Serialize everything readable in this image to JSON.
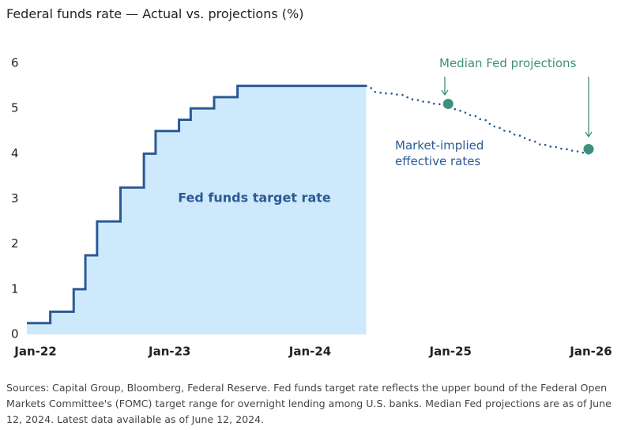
{
  "chart_data": {
    "type": "line",
    "title": "Federal funds rate — Actual vs. projections (%)",
    "notes": "Sources: Capital Group, Bloomberg, Federal Reserve. Fed funds target rate reflects the upper bound of the Federal Open Markets Committee's (FOMC) target range for overnight lending among U.S. banks. Median Fed projections are as of June 12, 2024. Latest data available as of June 12, 2024.",
    "ylim": [
      0,
      6
    ],
    "yticks": [
      0,
      1,
      2,
      3,
      4,
      5,
      6
    ],
    "xlim": [
      "2022-01",
      "2026-01"
    ],
    "xticks": [
      {
        "value": "2022-01",
        "label": "Jan-22"
      },
      {
        "value": "2023-01",
        "label": "Jan-23"
      },
      {
        "value": "2024-01",
        "label": "Jan-24"
      },
      {
        "value": "2025-01",
        "label": "Jan-25"
      },
      {
        "value": "2026-01",
        "label": "Jan-26"
      }
    ],
    "series": [
      {
        "name": "Fed funds target rate",
        "color": "#2b5a94",
        "fill": "#cde9fb",
        "style": "step-area",
        "x": [
          "2022-01",
          "2022-03",
          "2022-05",
          "2022-06",
          "2022-07",
          "2022-09",
          "2022-11",
          "2022-12",
          "2023-02",
          "2023-03",
          "2023-05",
          "2023-07",
          "2024-06"
        ],
        "values": [
          0.25,
          0.5,
          1.0,
          1.75,
          2.5,
          3.25,
          4.0,
          4.5,
          4.75,
          5.0,
          5.25,
          5.5,
          5.5
        ]
      },
      {
        "name": "Market-implied effective rates",
        "color": "#2b5a94",
        "style": "dotted",
        "x": [
          "2024-06",
          "2024-07",
          "2024-08",
          "2024-09",
          "2024-10",
          "2024-11",
          "2024-12",
          "2025-01",
          "2025-02",
          "2025-03",
          "2025-04",
          "2025-05",
          "2025-06",
          "2025-07",
          "2025-08",
          "2025-09",
          "2025-10",
          "2025-11",
          "2025-12",
          "2026-01"
        ],
        "values": [
          5.5,
          5.35,
          5.33,
          5.3,
          5.2,
          5.15,
          5.1,
          5.05,
          4.95,
          4.85,
          4.75,
          4.6,
          4.5,
          4.4,
          4.3,
          4.2,
          4.15,
          4.1,
          4.05,
          4.0
        ]
      },
      {
        "name": "Median Fed projections",
        "color": "#3e8f7b",
        "style": "points",
        "x": [
          "2025-01",
          "2026-01"
        ],
        "values": [
          5.1,
          4.1
        ]
      }
    ]
  }
}
